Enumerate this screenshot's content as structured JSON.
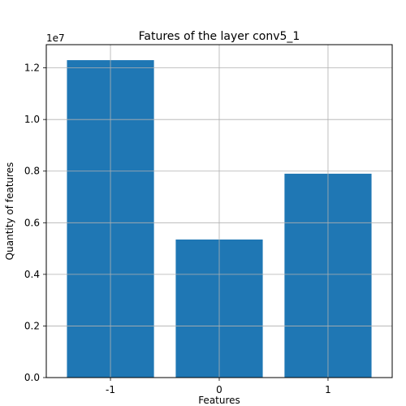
{
  "chart_data": {
    "type": "bar",
    "title": "Fatures of the layer conv5_1",
    "xlabel": "Features",
    "ylabel": "Quantity of features",
    "multiplier_label": "1e7",
    "categories": [
      "-1",
      "0",
      "1"
    ],
    "values": [
      1.23,
      0.535,
      0.79
    ],
    "ylim": [
      0,
      1.29
    ],
    "yticks": [
      0.0,
      0.2,
      0.4,
      0.6,
      0.8,
      1.0,
      1.2
    ],
    "ytick_labels": [
      "0.0",
      "0.2",
      "0.4",
      "0.6",
      "0.8",
      "1.0",
      "1.2"
    ],
    "grid": true,
    "bar_color": "#1f77b4"
  }
}
